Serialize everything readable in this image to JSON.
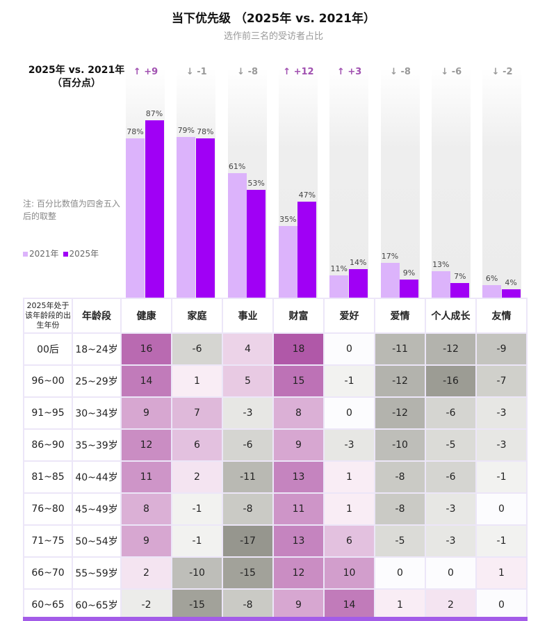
{
  "title": "当下优先级 （2025年 vs. 2021年）",
  "subtitle": "选作前三名的受访者占比",
  "left_header": [
    "2025年 vs. 2021年",
    "（百分点）"
  ],
  "note": "注: 百分比数值为四舍五入后的取整",
  "colors": {
    "y2021": "#dcb3fb",
    "y2025": "#a000f5",
    "pos_delta": "#a050b0",
    "neg_delta": "#999999"
  },
  "chart_data": [
    {
      "type": "bar",
      "categories": [
        "健康",
        "家庭",
        "事业",
        "财富",
        "爱好",
        "爱情",
        "个人成长",
        "友情"
      ],
      "series": [
        {
          "name": "2021年",
          "values": [
            78,
            79,
            61,
            35,
            11,
            17,
            13,
            6
          ]
        },
        {
          "name": "2025年",
          "values": [
            87,
            78,
            53,
            47,
            14,
            9,
            7,
            4
          ]
        }
      ],
      "deltas": [
        "+9",
        "-1",
        "-8",
        "+12",
        "+3",
        "-8",
        "-6",
        "-2"
      ],
      "ylim": [
        0,
        100
      ],
      "legend": "left"
    },
    {
      "type": "heatmap",
      "headers": [
        "2025年处于该年龄段的出生年份",
        "年龄段",
        "健康",
        "家庭",
        "事业",
        "财富",
        "爱好",
        "爱情",
        "个人成长",
        "友情"
      ],
      "rows": [
        {
          "birth": "00后",
          "age": "18~24岁",
          "values": [
            16,
            -6,
            4,
            18,
            0,
            -11,
            -12,
            -9
          ]
        },
        {
          "birth": "96~00",
          "age": "25~29岁",
          "values": [
            14,
            1,
            5,
            15,
            -1,
            -12,
            -16,
            -7
          ]
        },
        {
          "birth": "91~95",
          "age": "30~34岁",
          "values": [
            9,
            7,
            -3,
            8,
            0,
            -12,
            -6,
            -3
          ]
        },
        {
          "birth": "86~90",
          "age": "35~39岁",
          "values": [
            12,
            6,
            -6,
            9,
            -3,
            -10,
            -5,
            -3
          ]
        },
        {
          "birth": "81~85",
          "age": "40~44岁",
          "values": [
            11,
            2,
            -11,
            13,
            1,
            -8,
            -6,
            -1
          ]
        },
        {
          "birth": "76~80",
          "age": "45~49岁",
          "values": [
            8,
            -1,
            -8,
            11,
            1,
            -8,
            -3,
            0
          ]
        },
        {
          "birth": "71~75",
          "age": "50~54岁",
          "values": [
            9,
            -1,
            -17,
            13,
            6,
            -5,
            -3,
            -1
          ]
        },
        {
          "birth": "66~70",
          "age": "55~59岁",
          "values": [
            2,
            -10,
            -15,
            12,
            10,
            0,
            0,
            1
          ]
        },
        {
          "birth": "60~65",
          "age": "60~65岁",
          "values": [
            -2,
            -15,
            -8,
            9,
            14,
            1,
            2,
            0
          ]
        }
      ]
    }
  ]
}
